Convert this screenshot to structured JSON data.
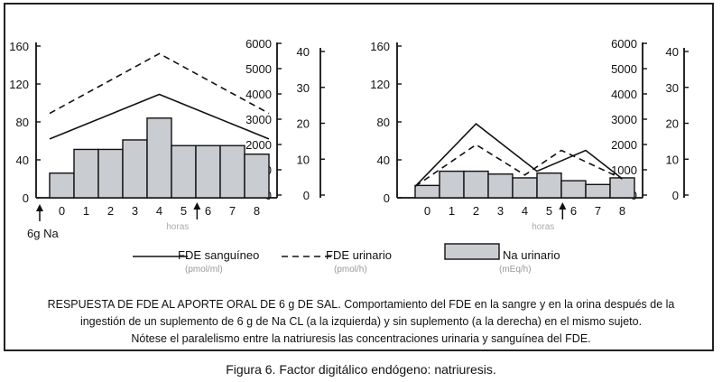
{
  "chart_data": [
    {
      "type": "bar",
      "panel": "left",
      "categories": [
        "0",
        "1",
        "2",
        "3",
        "4",
        "5",
        "6",
        "7",
        "8"
      ],
      "y_left_ticks": [
        "0",
        "40",
        "80",
        "120",
        "160"
      ],
      "y_left_range": [
        0,
        160
      ],
      "y_mid_ticks": [
        "0",
        "1000",
        "2000",
        "3000",
        "4000",
        "5000",
        "6000"
      ],
      "y_right_ticks": [
        "0",
        "10",
        "20",
        "30",
        "40"
      ],
      "series": [
        {
          "name": "Na urinario",
          "type": "bar",
          "values": [
            26,
            51,
            51,
            61,
            84,
            55,
            55,
            55,
            46
          ],
          "color": "#c9ccd1"
        },
        {
          "name": "FDE sanguíneo",
          "type": "line",
          "dash": false,
          "x": [
            -0.5,
            4,
            8.5
          ],
          "values": [
            62,
            109,
            62
          ]
        },
        {
          "name": "FDE urinario",
          "type": "line",
          "dash": true,
          "x": [
            -0.5,
            4,
            8.5
          ],
          "values": [
            89,
            152,
            89
          ]
        }
      ],
      "xlabel": "horas",
      "annotation": "6g Na"
    },
    {
      "type": "bar",
      "panel": "right",
      "categories": [
        "0",
        "1",
        "2",
        "3",
        "4",
        "5",
        "6",
        "7",
        "8"
      ],
      "y_left_ticks": [
        "0",
        "40",
        "80",
        "120",
        "160"
      ],
      "y_left_range": [
        0,
        160
      ],
      "y_mid_ticks": [
        "0",
        "1000",
        "2000",
        "3000",
        "4000",
        "5000",
        "6000"
      ],
      "y_right_ticks": [
        "0",
        "10",
        "20",
        "30",
        "40"
      ],
      "series": [
        {
          "name": "Na urinario",
          "type": "bar",
          "values": [
            13,
            28,
            28,
            25,
            21,
            26,
            18,
            14,
            21
          ],
          "color": "#c9ccd1"
        },
        {
          "name": "FDE sanguíneo",
          "type": "line",
          "dash": false,
          "x": [
            -0.5,
            2,
            4.5,
            6.5,
            8
          ],
          "values": [
            12,
            78,
            28,
            50,
            20
          ]
        },
        {
          "name": "FDE urinario",
          "type": "line",
          "dash": true,
          "x": [
            -0.5,
            2,
            4,
            5.5,
            8
          ],
          "values": [
            12,
            56,
            24,
            50,
            20
          ]
        }
      ],
      "xlabel": "horas"
    }
  ],
  "legend": {
    "solid_label": "FDE sanguíneo",
    "solid_unit": "(pmol/ml)",
    "dashed_label": "FDE urinario",
    "dashed_unit": "(pmol/h)",
    "bar_label": "Na urinario",
    "bar_unit": "(mEq/h)"
  },
  "caption": {
    "line1": "RESPUESTA DE FDE AL APORTE ORAL DE 6 g DE SAL. Comportamiento del FDE en la sangre y en la orina después de la",
    "line2": "ingestión de un suplemento de 6 g de Na CL (a la izquierda) y sin suplemento (a la derecha) en el mismo sujeto.",
    "line3": "Nótese el paralelismo entre la natriuresis las concentraciones urinaria y sanguínea del FDE."
  },
  "figure_label": "Figura 6. Factor digitálico endógeno: natriuresis."
}
